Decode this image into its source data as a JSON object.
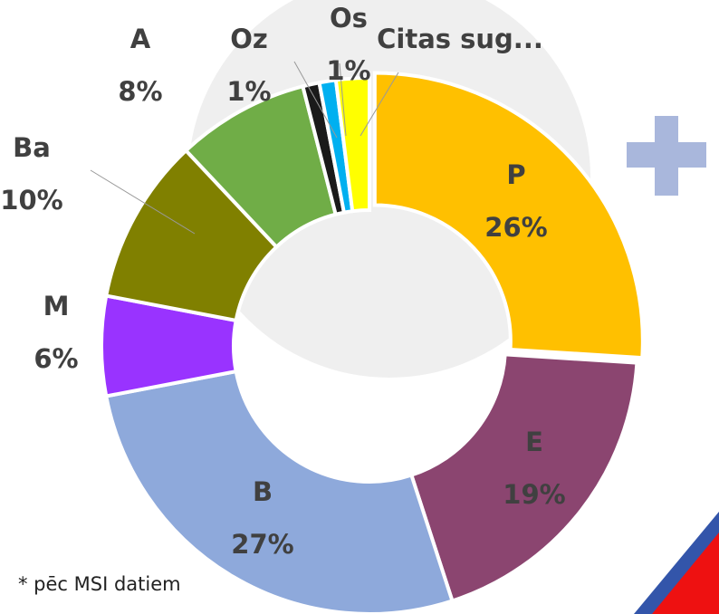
{
  "chart_data": {
    "type": "donut",
    "categories": [
      "P",
      "E",
      "B",
      "M",
      "Ba",
      "A",
      "Oz",
      "Os",
      "Citas sug..."
    ],
    "values": [
      26,
      19,
      27,
      6,
      10,
      8,
      1,
      1,
      2
    ],
    "value_labels": [
      "26%",
      "19%",
      "27%",
      "6%",
      "10%",
      "8%",
      "1%",
      "1%",
      null
    ],
    "colors": [
      "#FFC000",
      "#8B4570",
      "#8EA9DB",
      "#9933FF",
      "#808000",
      "#70AD47",
      "#1a1a1a",
      "#00B0F0",
      "#FFFF00"
    ],
    "footnote": "* pēc MSI datiem"
  }
}
